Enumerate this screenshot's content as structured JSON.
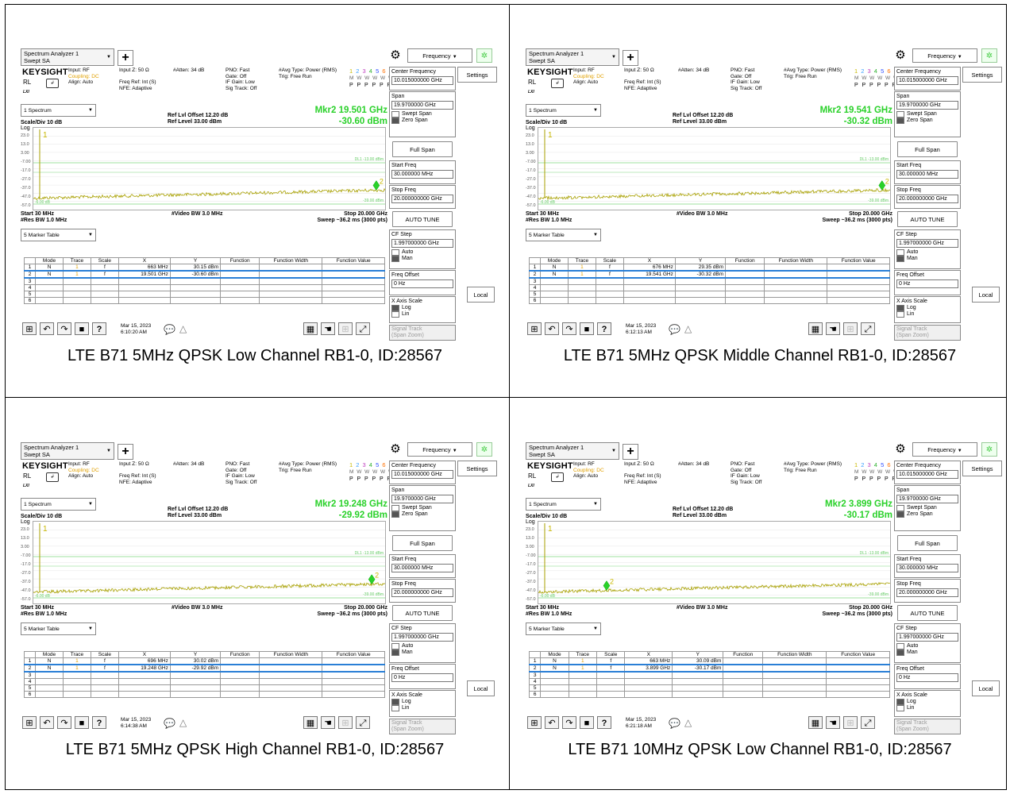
{
  "common": {
    "instrument": "Spectrum Analyzer 1",
    "mode": "Swept SA",
    "brand": "KEYSIGHT",
    "rl_label": "RL",
    "lxi": "LXI",
    "input_rf": "Input: RF",
    "coupling": "Coupling: DC",
    "align": "Align: Auto",
    "input_z": "Input Z: 50 Ω",
    "freq_ref": "Freq Ref: Int (S)",
    "nfe": "NFE: Adaptive",
    "atten": "#Atten: 34 dB",
    "pno": "PNO: Fast",
    "gate": "Gate: Off",
    "if_gain": "IF Gain: Low",
    "sig_track": "Sig Track: Off",
    "avg_type": "#Avg Type: Power (RMS)",
    "trig": "Trig: Free Run",
    "trace_nums": [
      "1",
      "2",
      "3",
      "4",
      "5",
      "6"
    ],
    "trace_w": "M W W W W W",
    "trace_p": "P P P P P P",
    "spectrum_dd": "1 Spectrum",
    "ref_offset": "Ref Lvl Offset 12.20 dB",
    "ref_level": "Ref Level 33.00 dBm",
    "scale_div": "Scale/Div 10 dB",
    "log": "Log",
    "y_ticks": [
      "23.0",
      "13.0",
      "3.00",
      "-7.00",
      "-17.0",
      "-27.0",
      "-37.0",
      "-47.0",
      "-57.0"
    ],
    "dl1": "DL1 -13.00 dBm",
    "dl2": "-39.00 dBm",
    "dl3": "-6.00 dB",
    "start": "Start 30 MHz",
    "res_bw": "#Res BW 1.0 MHz",
    "video_bw": "#Video BW 3.0 MHz",
    "stop": "Stop 20.000 GHz",
    "sweep": "Sweep ~36.2 ms (3000 pts)",
    "marker_table_dd": "5 Marker Table",
    "table_headers": [
      "",
      "Mode",
      "Trace",
      "Scale",
      "X",
      "Y",
      "Function",
      "Function Width",
      "Function Value"
    ],
    "sidebar": {
      "tab": "Frequency",
      "settings": "Settings",
      "center_freq_label": "Center Frequency",
      "center_freq_value": "10.015000000 GHz",
      "span_label": "Span",
      "span_value": "19.9700000 GHz",
      "swept_span": "Swept Span",
      "zero_span": "Zero Span",
      "full_span": "Full Span",
      "start_freq_label": "Start Freq",
      "start_freq_value": "30.000000 MHz",
      "stop_freq_label": "Stop Freq",
      "stop_freq_value": "20.000000000 GHz",
      "auto_tune": "AUTO TUNE",
      "cf_step_label": "CF Step",
      "cf_step_value": "1.997000000 GHz",
      "auto": "Auto",
      "man": "Man",
      "freq_offset_label": "Freq Offset",
      "freq_offset_value": "0 Hz",
      "x_axis_scale": "X Axis Scale",
      "log_opt": "Log",
      "lin_opt": "Lin",
      "signal_track": "Signal Track",
      "span_zoom": "(Span Zoom)",
      "local": "Local"
    }
  },
  "panels": [
    {
      "caption": "LTE B71 5MHz QPSK Low Channel RB1-0, ID:28567",
      "mkr_freq": "Mkr2  19.501 GHz",
      "mkr_level": "-30.60 dBm",
      "date": "Mar 15, 2023",
      "time": "6:10:20 AM",
      "marker2_pos": 0.975,
      "rows": [
        {
          "n": "1",
          "mode": "N",
          "trace": "1",
          "scale": "f",
          "x": "663 MHz",
          "y": "30.15 dBm"
        },
        {
          "n": "2",
          "mode": "N",
          "trace": "1",
          "scale": "f",
          "x": "19.501 GHz",
          "y": "-30.60 dBm"
        }
      ]
    },
    {
      "caption": "LTE B71 5MHz QPSK Middle Channel RB1-0, ID:28567",
      "mkr_freq": "Mkr2  19.541 GHz",
      "mkr_level": "-30.32 dBm",
      "date": "Mar 15, 2023",
      "time": "6:12:13 AM",
      "marker2_pos": 0.977,
      "rows": [
        {
          "n": "1",
          "mode": "N",
          "trace": "1",
          "scale": "f",
          "x": "676 MHz",
          "y": "29.35 dBm"
        },
        {
          "n": "2",
          "mode": "N",
          "trace": "1",
          "scale": "f",
          "x": "19.541 GHz",
          "y": "-30.32 dBm"
        }
      ]
    },
    {
      "caption": "LTE B71 5MHz QPSK High Channel RB1-0, ID:28567",
      "mkr_freq": "Mkr2  19.248 GHz",
      "mkr_level": "-29.92 dBm",
      "date": "Mar 15, 2023",
      "time": "6:14:38 AM",
      "marker2_pos": 0.962,
      "rows": [
        {
          "n": "1",
          "mode": "N",
          "trace": "1",
          "scale": "f",
          "x": "696 MHz",
          "y": "30.02 dBm"
        },
        {
          "n": "2",
          "mode": "N",
          "trace": "1",
          "scale": "f",
          "x": "19.248 GHz",
          "y": "-29.92 dBm"
        }
      ]
    },
    {
      "caption": "LTE B71 10MHz QPSK Low Channel RB1-0, ID:28567",
      "mkr_freq": "Mkr2  3.899 GHz",
      "mkr_level": "-30.17 dBm",
      "date": "Mar 15, 2023",
      "time": "6:21:18 AM",
      "marker2_pos": 0.194,
      "rows": [
        {
          "n": "1",
          "mode": "N",
          "trace": "1",
          "scale": "f",
          "x": "663 MHz",
          "y": "30.09 dBm"
        },
        {
          "n": "2",
          "mode": "N",
          "trace": "1",
          "scale": "f",
          "x": "3.899 GHz",
          "y": "-30.17 dBm"
        }
      ]
    }
  ]
}
